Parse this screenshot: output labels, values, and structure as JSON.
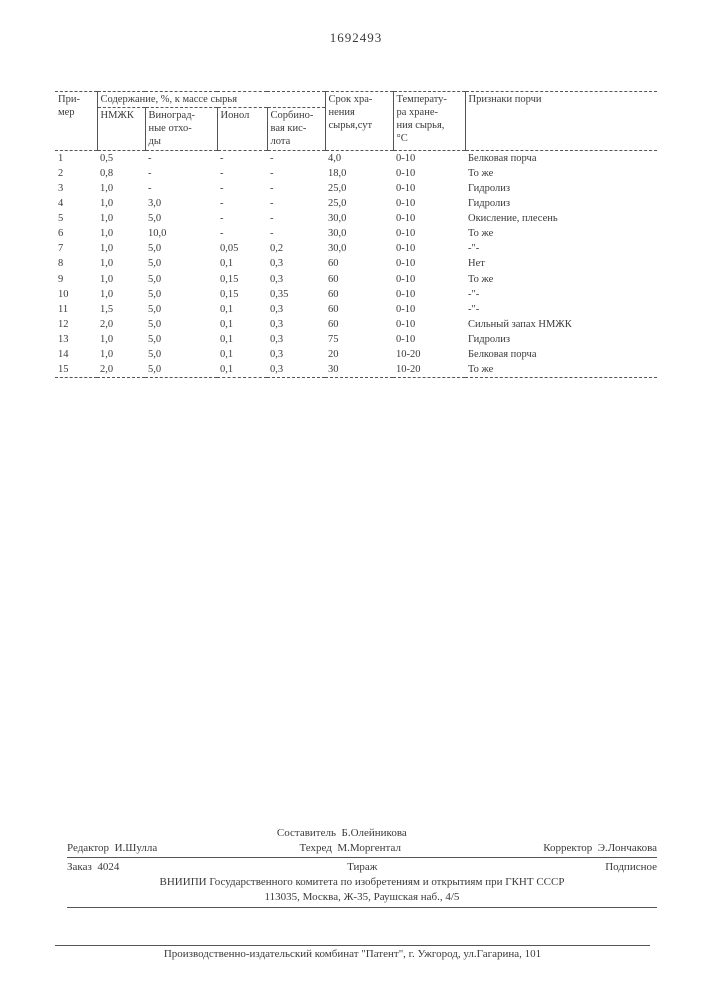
{
  "doc_number": "1692493",
  "header": {
    "col1": "При-\nмер",
    "col_group": "Содержание, %, к массе сырья",
    "col2": "НМЖК",
    "col3": "Виноград-\nные отхо-\nды",
    "col4": "Ионол",
    "col5": "Сорбино-\nвая кис-\nлота",
    "col6": "Срок хра-\nнения\nсырья,сут",
    "col7": "Температу-\nра хране-\nния сырья,\n°С",
    "col8": "Признаки порчи"
  },
  "rows": [
    {
      "n": "1",
      "nmjk": "0,5",
      "grape": "-",
      "ionol": "-",
      "sorb": "-",
      "shelf": "4,0",
      "temp": "0-10",
      "sign": "Белковая порча"
    },
    {
      "n": "2",
      "nmjk": "0,8",
      "grape": "-",
      "ionol": "-",
      "sorb": "-",
      "shelf": "18,0",
      "temp": "0-10",
      "sign": "То же"
    },
    {
      "n": "3",
      "nmjk": "1,0",
      "grape": "-",
      "ionol": "-",
      "sorb": "-",
      "shelf": "25,0",
      "temp": "0-10",
      "sign": "Гидролиз"
    },
    {
      "n": "4",
      "nmjk": "1,0",
      "grape": "3,0",
      "ionol": "-",
      "sorb": "-",
      "shelf": "25,0",
      "temp": "0-10",
      "sign": "Гидролиз"
    },
    {
      "n": "5",
      "nmjk": "1,0",
      "grape": "5,0",
      "ionol": "-",
      "sorb": "-",
      "shelf": "30,0",
      "temp": "0-10",
      "sign": "Окисление, плесень"
    },
    {
      "n": "6",
      "nmjk": "1,0",
      "grape": "10,0",
      "ionol": "-",
      "sorb": "-",
      "shelf": "30,0",
      "temp": "0-10",
      "sign": "То же"
    },
    {
      "n": "7",
      "nmjk": "1,0",
      "grape": "5,0",
      "ionol": "0,05",
      "sorb": "0,2",
      "shelf": "30,0",
      "temp": "0-10",
      "sign": "-\"-"
    },
    {
      "n": "8",
      "nmjk": "1,0",
      "grape": "5,0",
      "ionol": "0,1",
      "sorb": "0,3",
      "shelf": "60",
      "temp": "0-10",
      "sign": "Нет"
    },
    {
      "n": "9",
      "nmjk": "1,0",
      "grape": "5,0",
      "ionol": "0,15",
      "sorb": "0,3",
      "shelf": "60",
      "temp": "0-10",
      "sign": "То же"
    },
    {
      "n": "10",
      "nmjk": "1,0",
      "grape": "5,0",
      "ionol": "0,15",
      "sorb": "0,35",
      "shelf": "60",
      "temp": "0-10",
      "sign": "-\"-"
    },
    {
      "n": "11",
      "nmjk": "1,5",
      "grape": "5,0",
      "ionol": "0,1",
      "sorb": "0,3",
      "shelf": "60",
      "temp": "0-10",
      "sign": "-\"-"
    },
    {
      "n": "12",
      "nmjk": "2,0",
      "grape": "5,0",
      "ionol": "0,1",
      "sorb": "0,3",
      "shelf": "60",
      "temp": "0-10",
      "sign": "Сильный запах НМЖК"
    },
    {
      "n": "13",
      "nmjk": "1,0",
      "grape": "5,0",
      "ionol": "0,1",
      "sorb": "0,3",
      "shelf": "75",
      "temp": "0-10",
      "sign": "Гидролиз"
    },
    {
      "n": "14",
      "nmjk": "1,0",
      "grape": "5,0",
      "ionol": "0,1",
      "sorb": "0,3",
      "shelf": "20",
      "temp": "10-20",
      "sign": "Белковая порча"
    },
    {
      "n": "15",
      "nmjk": "2,0",
      "grape": "5,0",
      "ionol": "0,1",
      "sorb": "0,3",
      "shelf": "30",
      "temp": "10-20",
      "sign": "То же"
    }
  ],
  "credits": {
    "editor_label": "Редактор",
    "editor_name": "И.Шулла",
    "composer_label": "Составитель",
    "composer_name": "Б.Олейникова",
    "techred_label": "Техред",
    "techred_name": "М.Моргентал",
    "corrector_label": "Корректор",
    "corrector_name": "Э.Лончакова",
    "order_label": "Заказ",
    "order_no": "4024",
    "circulation_label": "Тираж",
    "circulation_val": "",
    "subscription": "Подписное",
    "org_line": "ВНИИПИ Государственного комитета по изобретениям и открытиям при ГКНТ СССР",
    "address": "113035, Москва, Ж-35, Раушская наб., 4/5",
    "printer": "Производственно-издательский комбинат \"Патент\", г. Ужгород, ул.Гагарина, 101"
  }
}
